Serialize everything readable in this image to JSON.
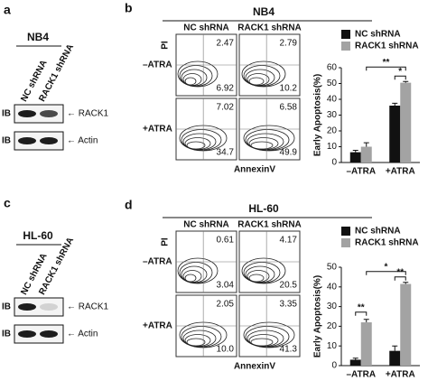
{
  "blots": [
    {
      "label": "a",
      "title": "NB4",
      "lanes": [
        "NC shRNA",
        "RACK1 shRNA"
      ],
      "rows": [
        {
          "method": "IB",
          "target": "← RACK1"
        },
        {
          "method": "IB",
          "target": "← Actin"
        }
      ]
    },
    {
      "label": "c",
      "title": "HL-60",
      "lanes": [
        "NC shRNA",
        "RACK1 shRNA"
      ],
      "rows": [
        {
          "method": "IB",
          "target": "← RACK1"
        },
        {
          "method": "IB",
          "target": "← Actin"
        }
      ]
    }
  ],
  "flows": [
    {
      "label": "b",
      "title": "NB4",
      "columns": [
        "NC shRNA",
        "RACK1 shRNA"
      ],
      "rows": [
        "–ATRA",
        "+ATRA"
      ],
      "y_label": "PI",
      "x_label": "AnnexinV",
      "quadrants": [
        [
          [
            "2.47",
            "6.92"
          ],
          [
            "2.79",
            "10.2"
          ]
        ],
        [
          [
            "7.02",
            "34.7"
          ],
          [
            "6.58",
            "49.9"
          ]
        ]
      ]
    },
    {
      "label": "d",
      "title": "HL-60",
      "columns": [
        "NC shRNA",
        "RACK1 shRNA"
      ],
      "rows": [
        "–ATRA",
        "+ATRA"
      ],
      "y_label": "PI",
      "x_label": "AnnexinV",
      "quadrants": [
        [
          [
            "0.61",
            "3.04"
          ],
          [
            "4.17",
            "20.5"
          ]
        ],
        [
          [
            "2.05",
            "10.0"
          ],
          [
            "3.35",
            "41.3"
          ]
        ]
      ]
    }
  ],
  "chart_data": [
    {
      "type": "bar",
      "y_label": "Early Apoptosis(%)",
      "categories": [
        "–ATRA",
        "+ATRA"
      ],
      "series": [
        {
          "name": "NC shRNA",
          "color": "#111111",
          "values": [
            6.5,
            36
          ],
          "errors": [
            1.2,
            1.5
          ]
        },
        {
          "name": "RACK1 shRNA",
          "color": "#a3a3a3",
          "values": [
            10,
            50.5
          ],
          "errors": [
            2.5,
            0.8
          ]
        }
      ],
      "ylim": [
        0,
        60
      ],
      "yticks": [
        0,
        10,
        20,
        30,
        40,
        50,
        60
      ],
      "annotations": [
        "**",
        "*"
      ]
    },
    {
      "type": "bar",
      "y_label": "Early Apoptosis(%)",
      "categories": [
        "–ATRA",
        "+ATRA"
      ],
      "series": [
        {
          "name": "NC shRNA",
          "color": "#111111",
          "values": [
            3,
            7.5
          ],
          "errors": [
            0.8,
            2.5
          ]
        },
        {
          "name": "RACK1 shRNA",
          "color": "#a3a3a3",
          "values": [
            22,
            41.5
          ],
          "errors": [
            1.5,
            0.8
          ]
        }
      ],
      "ylim": [
        0,
        50
      ],
      "yticks": [
        0,
        10,
        20,
        30,
        40,
        50
      ],
      "annotations": [
        "*",
        "**",
        "**"
      ]
    }
  ]
}
